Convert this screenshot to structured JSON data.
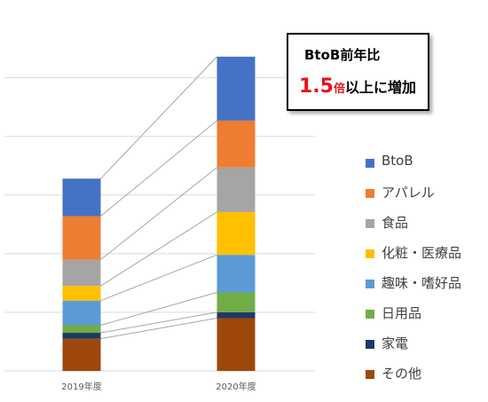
{
  "chart_data": {
    "type": "bar",
    "stacked": true,
    "categories": [
      "2019年度",
      "2020年度"
    ],
    "series": [
      {
        "name": "その他",
        "color": "#9E480E",
        "values": [
          5.5,
          9.0
        ]
      },
      {
        "name": "家電",
        "color": "#1F3864",
        "values": [
          1.0,
          1.0
        ]
      },
      {
        "name": "日用品",
        "color": "#70AD47",
        "values": [
          1.3,
          3.4
        ]
      },
      {
        "name": "趣味・嗜好品",
        "color": "#5B9BD5",
        "values": [
          4.2,
          6.4
        ]
      },
      {
        "name": "化粧・医療品",
        "color": "#FFC000",
        "values": [
          2.5,
          7.3
        ]
      },
      {
        "name": "食品",
        "color": "#A5A5A5",
        "values": [
          4.5,
          7.6
        ]
      },
      {
        "name": "アパレル",
        "color": "#ED7D31",
        "values": [
          7.4,
          8.0
        ]
      },
      {
        "name": "BtoB",
        "color": "#4472C4",
        "values": [
          6.4,
          10.9
        ]
      }
    ],
    "ylim": [
      0,
      56
    ],
    "grid": true,
    "gridlines": [
      0,
      10,
      20,
      30,
      40,
      50
    ],
    "show_y_tick_labels": false,
    "connector_lines": true,
    "legend_position": "right"
  },
  "callout": {
    "title": "BtoB前年比",
    "multiplier": "1.5",
    "bai": "倍",
    "rest": "以上に増加"
  },
  "legend": [
    {
      "label": "BtoB",
      "color": "#4472C4"
    },
    {
      "label": "アパレル",
      "color": "#ED7D31"
    },
    {
      "label": "食品",
      "color": "#A5A5A5"
    },
    {
      "label": "化粧・医療品",
      "color": "#FFC000"
    },
    {
      "label": "趣味・嗜好品",
      "color": "#5B9BD5"
    },
    {
      "label": "日用品",
      "color": "#70AD47"
    },
    {
      "label": "家電",
      "color": "#1F3864"
    },
    {
      "label": "その他",
      "color": "#9E480E"
    }
  ]
}
